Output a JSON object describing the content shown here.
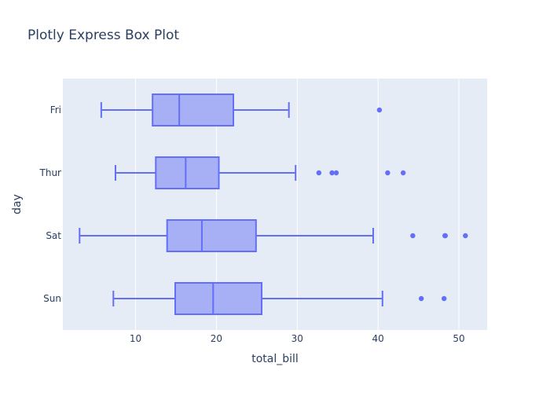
{
  "chart_data": {
    "type": "box",
    "orientation": "horizontal",
    "title": "Plotly Express Box Plot",
    "xlabel": "total_bill",
    "ylabel": "day",
    "xlim": [
      1.0,
      53.5
    ],
    "xticks": [
      10,
      20,
      30,
      40,
      50
    ],
    "categories": [
      "Fri",
      "Thur",
      "Sat",
      "Sun"
    ],
    "grid": true,
    "colors": {
      "plot_bg": "#e5ecf6",
      "grid": "#ffffff",
      "box_fill": "#a7b0f5",
      "box_line": "#636efa",
      "text": "#2a3f5f"
    },
    "boxes": [
      {
        "category": "Fri",
        "min": 5.75,
        "q1": 12.1,
        "median": 15.4,
        "q3": 22.1,
        "max": 28.97,
        "outliers": [
          40.17
        ]
      },
      {
        "category": "Thur",
        "min": 7.51,
        "q1": 12.5,
        "median": 16.2,
        "q3": 20.3,
        "max": 29.8,
        "outliers": [
          32.68,
          34.3,
          34.83,
          41.19,
          43.11
        ]
      },
      {
        "category": "Sat",
        "min": 3.07,
        "q1": 13.9,
        "median": 18.2,
        "q3": 24.9,
        "max": 39.4,
        "outliers": [
          44.3,
          48.27,
          48.33,
          50.81
        ]
      },
      {
        "category": "Sun",
        "min": 7.25,
        "q1": 14.9,
        "median": 19.6,
        "q3": 25.6,
        "max": 40.55,
        "outliers": [
          45.35,
          48.17
        ]
      }
    ]
  }
}
